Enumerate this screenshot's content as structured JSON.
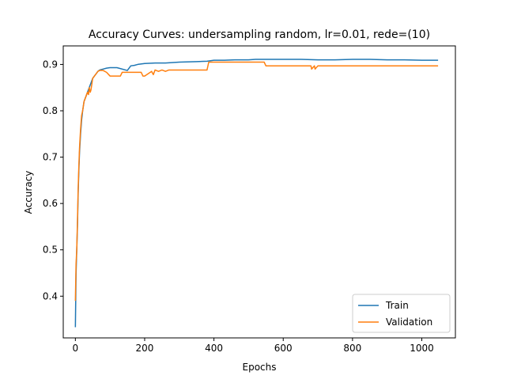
{
  "chart_data": {
    "type": "line",
    "title": "Accuracy Curves: undersampling random, lr=0.01, rede=(10)",
    "xlabel": "Epochs",
    "ylabel": "Accuracy",
    "xlim": [
      -35,
      1097
    ],
    "ylim": [
      0.31,
      0.94
    ],
    "xticks": [
      0,
      200,
      400,
      600,
      800,
      1000
    ],
    "yticks": [
      0.4,
      0.5,
      0.6,
      0.7,
      0.8,
      0.9
    ],
    "xtick_labels": [
      "0",
      "200",
      "400",
      "600",
      "800",
      "1000"
    ],
    "ytick_labels": [
      "0.4",
      "0.5",
      "0.6",
      "0.7",
      "0.8",
      "0.9"
    ],
    "grid": false,
    "legend_position": "lower-right",
    "series": [
      {
        "name": "Train",
        "color": "#1f77b4",
        "x": [
          0,
          2,
          4,
          6,
          8,
          10,
          12,
          15,
          18,
          21,
          25,
          30,
          35,
          40,
          45,
          50,
          55,
          60,
          65,
          70,
          80,
          90,
          100,
          120,
          150,
          160,
          170,
          180,
          200,
          230,
          260,
          300,
          350,
          380,
          400,
          430,
          460,
          500,
          520,
          550,
          600,
          650,
          700,
          750,
          800,
          850,
          900,
          950,
          1000,
          1047
        ],
        "y": [
          0.333,
          0.45,
          0.5,
          0.55,
          0.62,
          0.67,
          0.71,
          0.75,
          0.78,
          0.8,
          0.82,
          0.83,
          0.84,
          0.85,
          0.86,
          0.87,
          0.875,
          0.88,
          0.885,
          0.888,
          0.89,
          0.892,
          0.893,
          0.893,
          0.887,
          0.897,
          0.898,
          0.9,
          0.902,
          0.903,
          0.903,
          0.905,
          0.906,
          0.907,
          0.909,
          0.909,
          0.91,
          0.91,
          0.911,
          0.911,
          0.911,
          0.911,
          0.91,
          0.91,
          0.911,
          0.911,
          0.91,
          0.91,
          0.909,
          0.909
        ]
      },
      {
        "name": "Validation",
        "color": "#ff7f0e",
        "x": [
          0,
          2,
          4,
          6,
          8,
          10,
          12,
          15,
          18,
          21,
          25,
          30,
          35,
          38,
          40,
          43,
          45,
          48,
          50,
          55,
          60,
          65,
          70,
          80,
          90,
          100,
          130,
          135,
          190,
          195,
          200,
          220,
          225,
          230,
          240,
          250,
          260,
          270,
          380,
          385,
          545,
          550,
          680,
          682,
          690,
          692,
          700,
          1047
        ],
        "y": [
          0.39,
          0.47,
          0.5,
          0.56,
          0.63,
          0.68,
          0.72,
          0.76,
          0.79,
          0.8,
          0.82,
          0.83,
          0.84,
          0.835,
          0.85,
          0.84,
          0.845,
          0.86,
          0.87,
          0.875,
          0.88,
          0.885,
          0.887,
          0.887,
          0.883,
          0.875,
          0.875,
          0.883,
          0.883,
          0.875,
          0.875,
          0.885,
          0.878,
          0.888,
          0.885,
          0.888,
          0.885,
          0.888,
          0.888,
          0.905,
          0.905,
          0.897,
          0.897,
          0.89,
          0.897,
          0.89,
          0.897,
          0.897
        ]
      }
    ]
  }
}
